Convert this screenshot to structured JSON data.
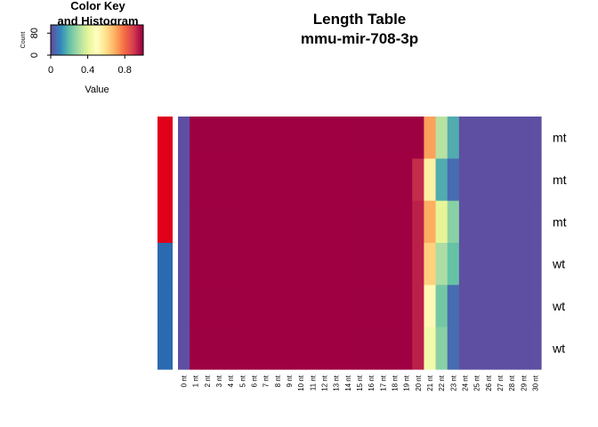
{
  "chart_data": {
    "type": "heatmap",
    "title": "Length Table",
    "subtitle": "mmu-mir-708-3p",
    "columns": [
      "0 nt",
      "1 nt",
      "2 nt",
      "3 nt",
      "4 nt",
      "5 nt",
      "6 nt",
      "7 nt",
      "8 nt",
      "9 nt",
      "10 nt",
      "11 nt",
      "12 nt",
      "13 nt",
      "14 nt",
      "15 nt",
      "16 nt",
      "17 nt",
      "18 nt",
      "19 nt",
      "20 nt",
      "21 nt",
      "22 nt",
      "23 nt",
      "24 nt",
      "25 nt",
      "26 nt",
      "27 nt",
      "28 nt",
      "29 nt",
      "30 nt"
    ],
    "rows": [
      "mt",
      "mt",
      "mt",
      "wt",
      "wt",
      "wt"
    ],
    "row_side_colors": [
      "#e0001a",
      "#e0001a",
      "#e0001a",
      "#2b6ab0",
      "#2b6ab0",
      "#2b6ab0"
    ],
    "values": [
      [
        0,
        1,
        1,
        1,
        1,
        1,
        1,
        1,
        1,
        1,
        1,
        1,
        1,
        1,
        1,
        1,
        1,
        1,
        1,
        1,
        1,
        0.72,
        0.32,
        0.16,
        0,
        0,
        0,
        0,
        0,
        0,
        0
      ],
      [
        0,
        1,
        1,
        1,
        1,
        1,
        1,
        1,
        1,
        1,
        1,
        1,
        1,
        1,
        1,
        1,
        1,
        1,
        1,
        1,
        0.93,
        0.55,
        0.16,
        0.05,
        0,
        0,
        0,
        0,
        0,
        0,
        0
      ],
      [
        0,
        1,
        1,
        1,
        1,
        1,
        1,
        1,
        1,
        1,
        1,
        1,
        1,
        1,
        1,
        1,
        1,
        1,
        1,
        1,
        0.95,
        0.7,
        0.4,
        0.25,
        0,
        0,
        0,
        0,
        0,
        0,
        0
      ],
      [
        0,
        1,
        1,
        1,
        1,
        1,
        1,
        1,
        1,
        1,
        1,
        1,
        1,
        1,
        1,
        1,
        1,
        1,
        1,
        1,
        0.95,
        0.63,
        0.3,
        0.2,
        0,
        0,
        0,
        0,
        0,
        0,
        0
      ],
      [
        0,
        1,
        1,
        1,
        1,
        1,
        1,
        1,
        1,
        1,
        1,
        1,
        1,
        1,
        1,
        1,
        1,
        1,
        1,
        1,
        0.95,
        0.52,
        0.22,
        0.05,
        0,
        0,
        0,
        0,
        0,
        0,
        0
      ],
      [
        0,
        1,
        1,
        1,
        1,
        1,
        1,
        1,
        1,
        1,
        1,
        1,
        1,
        1,
        1,
        1,
        1,
        1,
        1,
        1,
        0.95,
        0.45,
        0.25,
        0.05,
        0,
        0,
        0,
        0,
        0,
        0,
        0
      ]
    ],
    "palette": [
      "#5e4fa2",
      "#3288bd",
      "#66c2a5",
      "#abdda4",
      "#e6f598",
      "#ffffbf",
      "#fee08b",
      "#fdae61",
      "#f46d43",
      "#d53e4f",
      "#9e0142"
    ],
    "color_key": {
      "title_line1": "Color Key",
      "title_line2": "and Histogram",
      "xlabel": "Value",
      "ylabel": "Count",
      "xticks": [
        0,
        0.4,
        0.8
      ],
      "yticks": [
        0,
        80
      ]
    }
  }
}
